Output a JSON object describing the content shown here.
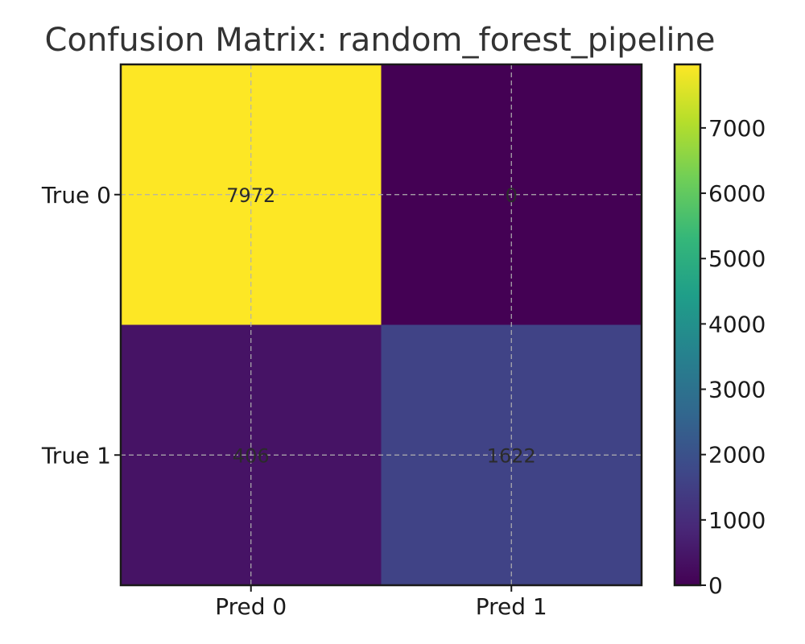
{
  "chart_data": {
    "type": "heatmap",
    "title": "Confusion Matrix: random_forest_pipeline",
    "x_categories": [
      "Pred 0",
      "Pred 1"
    ],
    "y_categories": [
      "True 0",
      "True 1"
    ],
    "values": [
      [
        7972,
        0
      ],
      [
        406,
        1622
      ]
    ],
    "colormap": "viridis",
    "colorbar": {
      "min": 0,
      "max": 7972,
      "ticks": [
        0,
        1000,
        2000,
        3000,
        4000,
        5000,
        6000,
        7000
      ]
    },
    "grid": true
  }
}
